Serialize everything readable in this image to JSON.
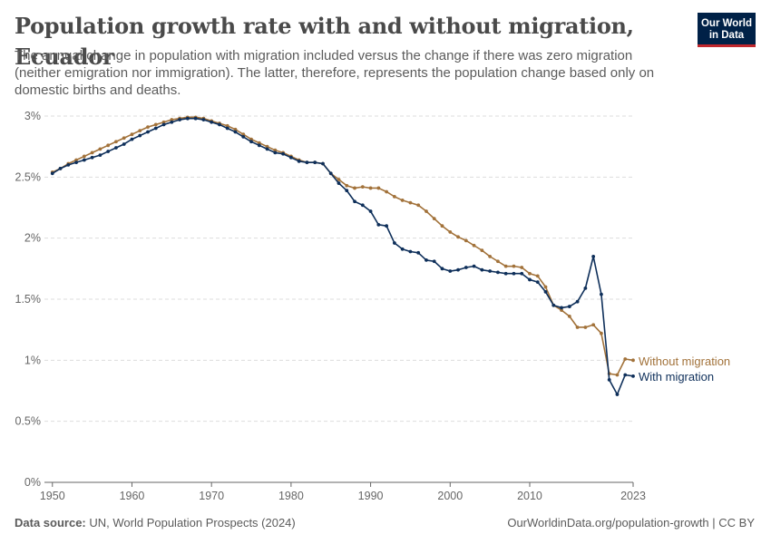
{
  "header": {
    "title": "Population growth rate with and without migration, Ecuador",
    "subtitle": "The annual change in population with migration included versus the change if there was zero migration (neither emigration nor immigration). The latter, therefore, represents the population change based only on domestic births and deaths.",
    "logo_line1": "Our World",
    "logo_line2": "in Data"
  },
  "footer": {
    "source_label": "Data source:",
    "source_text": "UN, World Population Prospects (2024)",
    "url_text": "OurWorldinData.org/population-growth | CC BY"
  },
  "colors": {
    "with_migration": "#0e2f5a",
    "without_migration": "#a2723a",
    "grid": "#dddddd",
    "axis": "#666666"
  },
  "chart_data": {
    "type": "line",
    "x_start": 1950,
    "x_end": 2023,
    "xlim": [
      1949,
      2023
    ],
    "ylim": [
      0,
      3
    ],
    "x_ticks": [
      1950,
      1960,
      1970,
      1980,
      1990,
      2000,
      2010,
      2023
    ],
    "x_tick_labels": [
      "1950",
      "1960",
      "1970",
      "1980",
      "1990",
      "2000",
      "2010",
      "2023"
    ],
    "y_ticks": [
      0,
      0.5,
      1,
      1.5,
      2,
      2.5,
      3
    ],
    "y_tick_labels": [
      "0%",
      "0.5%",
      "1%",
      "1.5%",
      "2%",
      "2.5%",
      "3%"
    ],
    "y_unit": "%",
    "grid": "horizontal dashed",
    "legend": "inline labels at right end of lines",
    "series": [
      {
        "name": "Without migration",
        "color": "#a2723a",
        "values": [
          2.54,
          2.57,
          2.61,
          2.64,
          2.67,
          2.7,
          2.73,
          2.76,
          2.79,
          2.82,
          2.85,
          2.88,
          2.91,
          2.93,
          2.95,
          2.97,
          2.98,
          2.99,
          2.99,
          2.98,
          2.96,
          2.94,
          2.92,
          2.89,
          2.85,
          2.81,
          2.78,
          2.75,
          2.72,
          2.7,
          2.67,
          2.64,
          2.62,
          2.62,
          2.61,
          2.53,
          2.48,
          2.43,
          2.41,
          2.42,
          2.41,
          2.41,
          2.38,
          2.34,
          2.31,
          2.29,
          2.27,
          2.22,
          2.16,
          2.1,
          2.05,
          2.01,
          1.98,
          1.94,
          1.9,
          1.85,
          1.81,
          1.77,
          1.77,
          1.76,
          1.71,
          1.69,
          1.6,
          1.45,
          1.41,
          1.36,
          1.27,
          1.27,
          1.29,
          1.22,
          0.89,
          0.88,
          1.01,
          1.0
        ]
      },
      {
        "name": "With migration",
        "color": "#0e2f5a",
        "values": [
          2.53,
          2.57,
          2.6,
          2.62,
          2.64,
          2.66,
          2.68,
          2.71,
          2.74,
          2.77,
          2.81,
          2.84,
          2.87,
          2.9,
          2.93,
          2.95,
          2.97,
          2.98,
          2.98,
          2.97,
          2.95,
          2.93,
          2.9,
          2.87,
          2.83,
          2.79,
          2.76,
          2.73,
          2.7,
          2.69,
          2.66,
          2.63,
          2.62,
          2.62,
          2.61,
          2.53,
          2.45,
          2.39,
          2.3,
          2.27,
          2.22,
          2.11,
          2.1,
          1.96,
          1.91,
          1.89,
          1.88,
          1.82,
          1.81,
          1.75,
          1.73,
          1.74,
          1.76,
          1.77,
          1.74,
          1.73,
          1.72,
          1.71,
          1.71,
          1.71,
          1.66,
          1.64,
          1.56,
          1.45,
          1.43,
          1.44,
          1.48,
          1.59,
          1.85,
          1.54,
          0.84,
          0.72,
          0.88,
          0.87
        ]
      }
    ]
  }
}
